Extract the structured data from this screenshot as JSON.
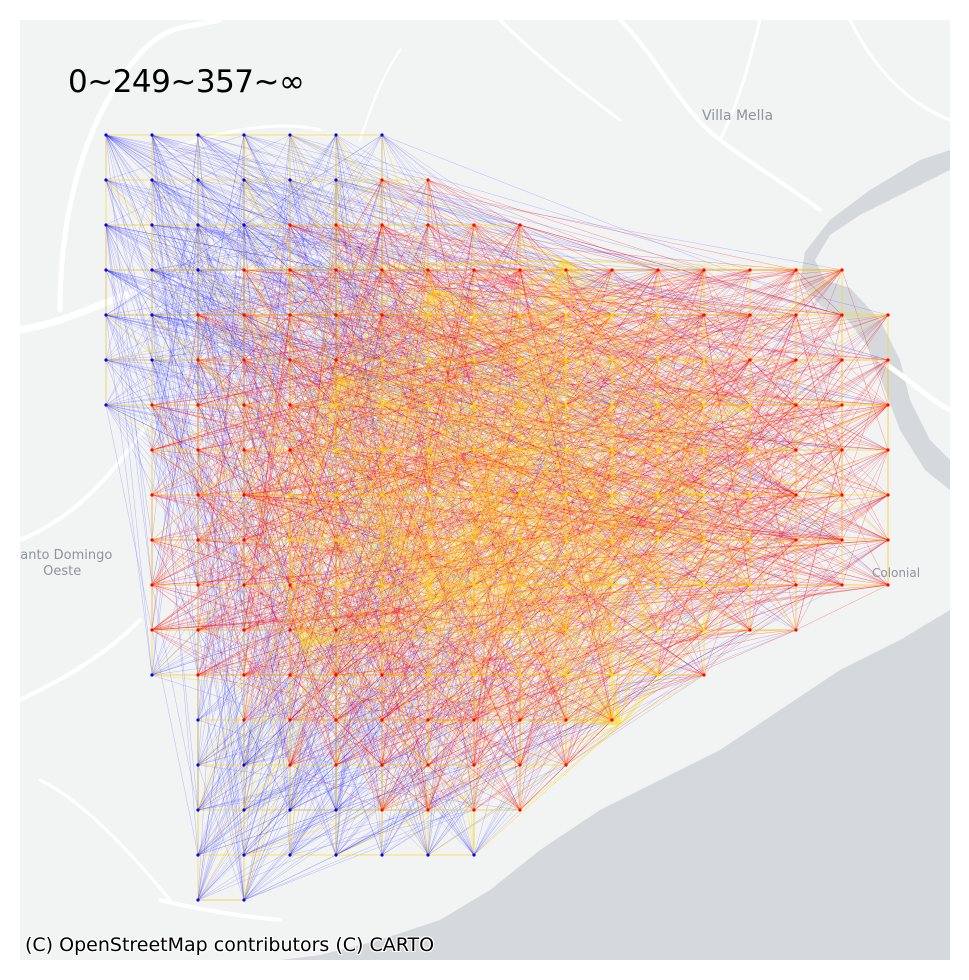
{
  "map": {
    "basemap_style": "CARTO light",
    "place_labels": {
      "villa_mella": "Villa Mella",
      "santo_domingo_oeste_line1": "Santo Domingo",
      "santo_domingo_oeste_line2": "Oeste",
      "colonial": "Colonial"
    },
    "legend_title": "0~249~357~∞",
    "attribution": "(C) OpenStreetMap contributors (C) CARTO",
    "colors": {
      "land": "#f2f3f3",
      "water": "#d5d9dc",
      "roads": "#ffffff",
      "class_low": "#0000ff",
      "class_mid": "#ff0000",
      "class_high": "#ffd700"
    },
    "flow_classes": [
      {
        "range": "0~249",
        "color": "#0000ff"
      },
      {
        "range": "249~357",
        "color": "#ff0000"
      },
      {
        "range": "357~∞",
        "color": "#ffd700"
      }
    ]
  }
}
